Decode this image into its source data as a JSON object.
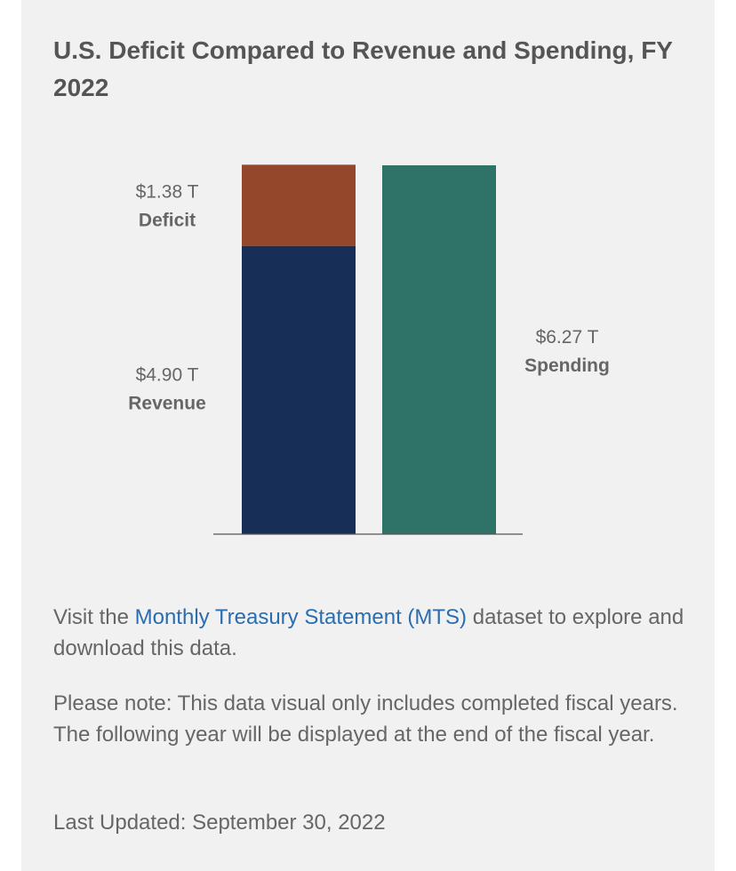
{
  "title": "U.S. Deficit Compared to Revenue and Spending, FY 2022",
  "colors": {
    "deficit": "#94472b",
    "revenue": "#172e56",
    "spending": "#2f7268",
    "link": "#2a6db0"
  },
  "chart_data": {
    "type": "bar",
    "stacked": true,
    "categories": [
      "",
      ""
    ],
    "ylim": [
      0,
      6.27
    ],
    "grid": false,
    "segments": [
      {
        "name": "Revenue",
        "value": 4.9,
        "value_label": "$4.90 T",
        "bar": 0,
        "color": "#172e56"
      },
      {
        "name": "Deficit",
        "value": 1.38,
        "value_label": "$1.38 T",
        "bar": 0,
        "color": "#94472b"
      },
      {
        "name": "Spending",
        "value": 6.27,
        "value_label": "$6.27 T",
        "bar": 1,
        "color": "#2f7268"
      }
    ]
  },
  "footer": {
    "visit_prefix": "Visit the ",
    "link_text": "Monthly Treasury Statement (MTS)",
    "visit_suffix": " dataset to explore and download this data.",
    "note": "Please note: This data visual only includes completed fiscal years. The following year will be displayed at the end of the fiscal year.",
    "last_updated": "Last Updated: September 30, 2022"
  }
}
